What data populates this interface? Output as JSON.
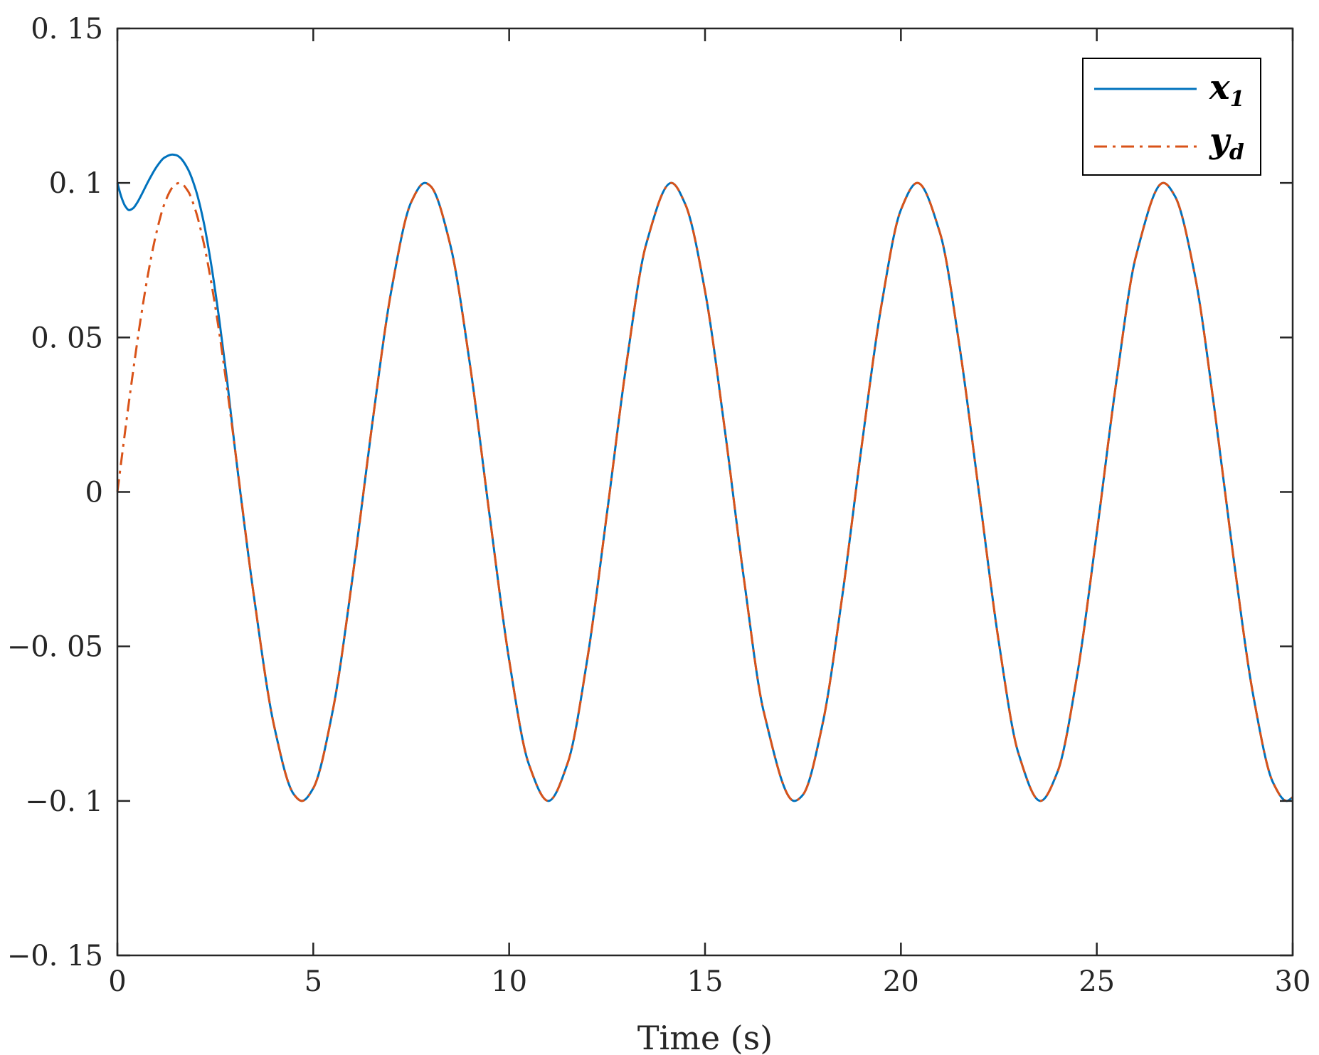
{
  "chart_data": {
    "type": "line",
    "title": "",
    "xlabel": "Time (s)",
    "ylabel": "",
    "xlim": [
      0,
      30
    ],
    "ylim": [
      -0.15,
      0.15
    ],
    "xticks": [
      0,
      5,
      10,
      15,
      20,
      25,
      30
    ],
    "xtick_labels": [
      "0",
      "5",
      "10",
      "15",
      "20",
      "25",
      "30"
    ],
    "yticks": [
      0.15,
      0.1,
      0.05,
      0,
      -0.05,
      -0.1,
      -0.15
    ],
    "ytick_labels": [
      "0. 15",
      "0. 1",
      "0. 05",
      "0",
      "−0. 05",
      "−0. 1",
      "−0. 15"
    ],
    "grid": false,
    "legend": {
      "position": "top-right",
      "entries": [
        {
          "main": "x",
          "sub": "1"
        },
        {
          "main": "y",
          "sub": "d"
        }
      ]
    },
    "series": [
      {
        "name": "x1",
        "color": "#0072BD",
        "style": "solid",
        "x": [
          0,
          0.1,
          0.2,
          0.3,
          0.4,
          0.5,
          0.6,
          0.8,
          1.0,
          1.2,
          1.4,
          1.5,
          1.6,
          1.8,
          2.0,
          2.2,
          2.4,
          2.6,
          2.8,
          3.0,
          3.5,
          4.0,
          4.5,
          4.71,
          5.0,
          5.5,
          6.0,
          6.5,
          7.0,
          7.5,
          7.85,
          8.0,
          8.5,
          9.0,
          9.5,
          10.0,
          10.5,
          11.0,
          11.5,
          12.0,
          12.5,
          13.0,
          13.5,
          14.14,
          14.5,
          15.0,
          15.5,
          16.0,
          16.5,
          17.28,
          17.5,
          18.0,
          18.5,
          19.0,
          19.5,
          20.0,
          20.42,
          21.0,
          21.5,
          22.0,
          22.5,
          23.0,
          23.56,
          24.0,
          24.5,
          25.0,
          25.5,
          26.0,
          26.7,
          27.0,
          27.5,
          28.0,
          28.5,
          29.0,
          29.5,
          29.85,
          30.0
        ],
        "y": [
          0.1,
          0.0955,
          0.0925,
          0.0912,
          0.0918,
          0.0935,
          0.0958,
          0.1008,
          0.1052,
          0.1082,
          0.1092,
          0.109,
          0.1082,
          0.1045,
          0.0978,
          0.0875,
          0.0732,
          0.0558,
          0.0361,
          0.0141,
          -0.0351,
          -0.0757,
          -0.0978,
          -0.1,
          -0.0959,
          -0.0706,
          -0.0279,
          0.0215,
          0.0657,
          0.0938,
          0.1,
          0.0989,
          0.0798,
          0.0412,
          -0.0075,
          -0.0544,
          -0.088,
          -0.1,
          -0.0875,
          -0.0537,
          -0.0066,
          0.042,
          0.0803,
          0.1,
          0.093,
          0.065,
          0.0206,
          -0.0288,
          -0.0712,
          -0.1,
          -0.098,
          -0.0751,
          -0.034,
          0.015,
          0.0602,
          0.0913,
          0.1,
          0.0837,
          0.0468,
          -0.0009,
          -0.0487,
          -0.0846,
          -0.1,
          -0.0905,
          -0.0592,
          -0.0132,
          0.0358,
          0.0763,
          0.1,
          0.0956,
          0.0704,
          0.0271,
          -0.0223,
          -0.0663,
          -0.0941,
          -0.1,
          -0.0988
        ]
      },
      {
        "name": "yd",
        "color": "#D95319",
        "style": "dashdot",
        "x": [
          0,
          0.1,
          0.2,
          0.3,
          0.4,
          0.5,
          0.6,
          0.8,
          1.0,
          1.2,
          1.4,
          1.5,
          1.6,
          1.8,
          2.0,
          2.2,
          2.4,
          2.6,
          2.8,
          3.0,
          3.5,
          4.0,
          4.5,
          4.71,
          5.0,
          5.5,
          6.0,
          6.5,
          7.0,
          7.5,
          7.85,
          8.0,
          8.5,
          9.0,
          9.5,
          10.0,
          10.5,
          11.0,
          11.5,
          12.0,
          12.5,
          13.0,
          13.5,
          14.14,
          14.5,
          15.0,
          15.5,
          16.0,
          16.5,
          17.28,
          17.5,
          18.0,
          18.5,
          19.0,
          19.5,
          20.0,
          20.42,
          21.0,
          21.5,
          22.0,
          22.5,
          23.0,
          23.56,
          24.0,
          24.5,
          25.0,
          25.5,
          26.0,
          26.7,
          27.0,
          27.5,
          28.0,
          28.5,
          29.0,
          29.5,
          29.85,
          30.0
        ],
        "y": [
          0,
          0.01,
          0.0199,
          0.0296,
          0.0389,
          0.0479,
          0.0565,
          0.0717,
          0.0841,
          0.0932,
          0.0985,
          0.0997,
          0.1,
          0.0974,
          0.0909,
          0.0808,
          0.0675,
          0.0516,
          0.0335,
          0.0141,
          -0.0351,
          -0.0757,
          -0.0978,
          -0.1,
          -0.0959,
          -0.0706,
          -0.0279,
          0.0215,
          0.0657,
          0.0938,
          0.1,
          0.0989,
          0.0798,
          0.0412,
          -0.0075,
          -0.0544,
          -0.088,
          -0.1,
          -0.0875,
          -0.0537,
          -0.0066,
          0.042,
          0.0803,
          0.1,
          0.093,
          0.065,
          0.0206,
          -0.0288,
          -0.0712,
          -0.1,
          -0.098,
          -0.0751,
          -0.034,
          0.015,
          0.0602,
          0.0913,
          0.1,
          0.0837,
          0.0468,
          -0.0009,
          -0.0487,
          -0.0846,
          -0.1,
          -0.0905,
          -0.0592,
          -0.0132,
          0.0358,
          0.0763,
          0.1,
          0.0956,
          0.0704,
          0.0271,
          -0.0223,
          -0.0663,
          -0.0941,
          -0.1,
          -0.0988
        ]
      }
    ]
  }
}
